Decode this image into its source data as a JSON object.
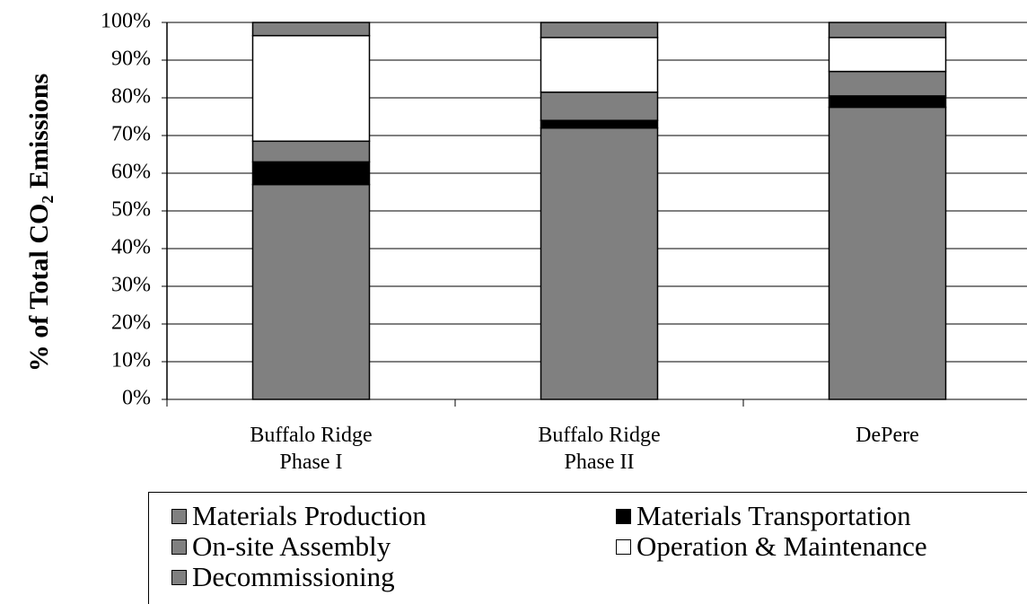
{
  "chart_data": {
    "type": "stacked_bar",
    "y_label": "% of Total CO₂ Emissions",
    "categories": [
      "Buffalo Ridge Phase I",
      "Buffalo Ridge Phase II",
      "DePere"
    ],
    "series": [
      {
        "name": "Materials Production",
        "color": "#808080",
        "values": [
          57,
          72,
          77.5
        ]
      },
      {
        "name": "Materials Transportation",
        "color": "#000000",
        "values": [
          6,
          2,
          3
        ]
      },
      {
        "name": "On-site Assembly",
        "color": "#808080",
        "values": [
          5.5,
          7.5,
          6.5
        ]
      },
      {
        "name": "Operation & Maintenance",
        "color": "#ffffff",
        "values": [
          28,
          14.5,
          9
        ]
      },
      {
        "name": "Decommissioning",
        "color": "#808080",
        "values": [
          3.5,
          4,
          4
        ]
      }
    ],
    "ylim": [
      0,
      100
    ],
    "yticks": [
      {
        "value": 0,
        "label": "0%"
      },
      {
        "value": 10,
        "label": "10%"
      },
      {
        "value": 20,
        "label": "20%"
      },
      {
        "value": 30,
        "label": "30%"
      },
      {
        "value": 40,
        "label": "40%"
      },
      {
        "value": 50,
        "label": "50%"
      },
      {
        "value": 60,
        "label": "60%"
      },
      {
        "value": 70,
        "label": "70%"
      },
      {
        "value": 80,
        "label": "80%"
      },
      {
        "value": 90,
        "label": "90%"
      },
      {
        "value": 100,
        "label": "100%"
      }
    ],
    "grid": true
  }
}
